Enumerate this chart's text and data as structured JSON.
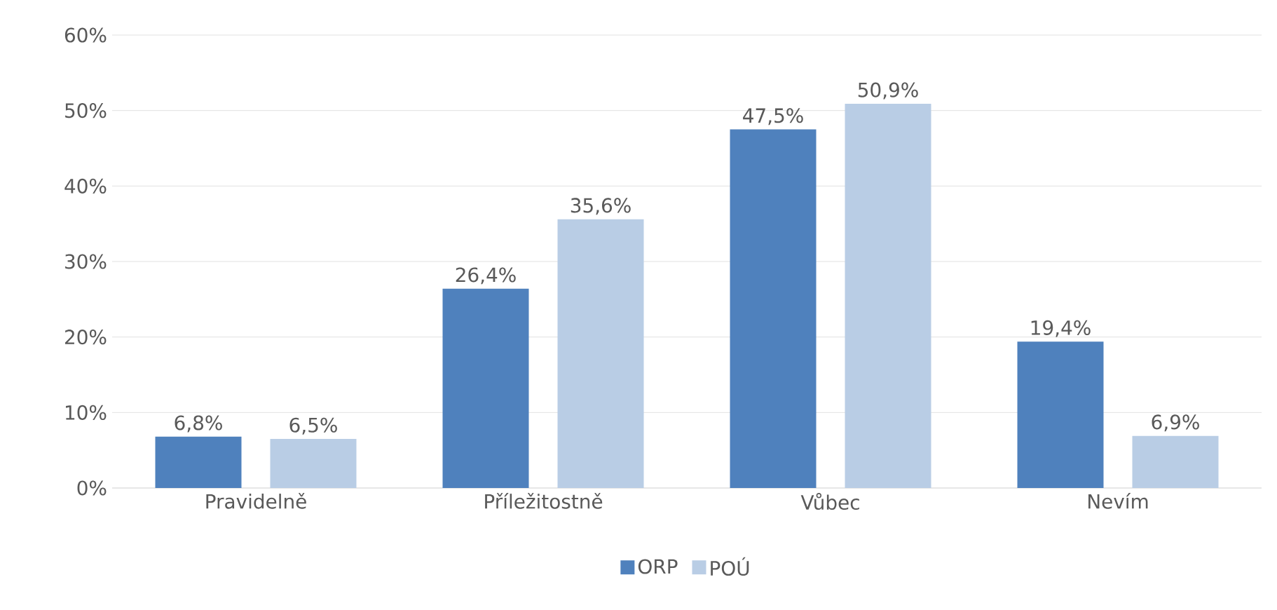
{
  "chart_data": {
    "type": "bar",
    "categories": [
      "Pravidelně",
      "Příležitostně",
      "Vůbec",
      "Nevím"
    ],
    "series": [
      {
        "name": "ORP",
        "color": "#4f81bd",
        "values": [
          6.8,
          26.4,
          47.5,
          19.4
        ],
        "value_labels": [
          "6,8%",
          "26,4%",
          "47,5%",
          "19,4%"
        ]
      },
      {
        "name": "POÚ",
        "color": "#b9cde5",
        "values": [
          6.5,
          35.6,
          50.9,
          6.9
        ],
        "value_labels": [
          "6,5%",
          "35,6%",
          "50,9%",
          "6,9%"
        ]
      }
    ],
    "ylim": [
      0,
      60
    ],
    "yticks": [
      {
        "value": 0,
        "label": "0%"
      },
      {
        "value": 10,
        "label": "10%"
      },
      {
        "value": 20,
        "label": "20%"
      },
      {
        "value": 30,
        "label": "30%"
      },
      {
        "value": 40,
        "label": "40%"
      },
      {
        "value": 50,
        "label": "50%"
      },
      {
        "value": 60,
        "label": "60%"
      }
    ],
    "grid": "y",
    "legend": "bottom"
  }
}
